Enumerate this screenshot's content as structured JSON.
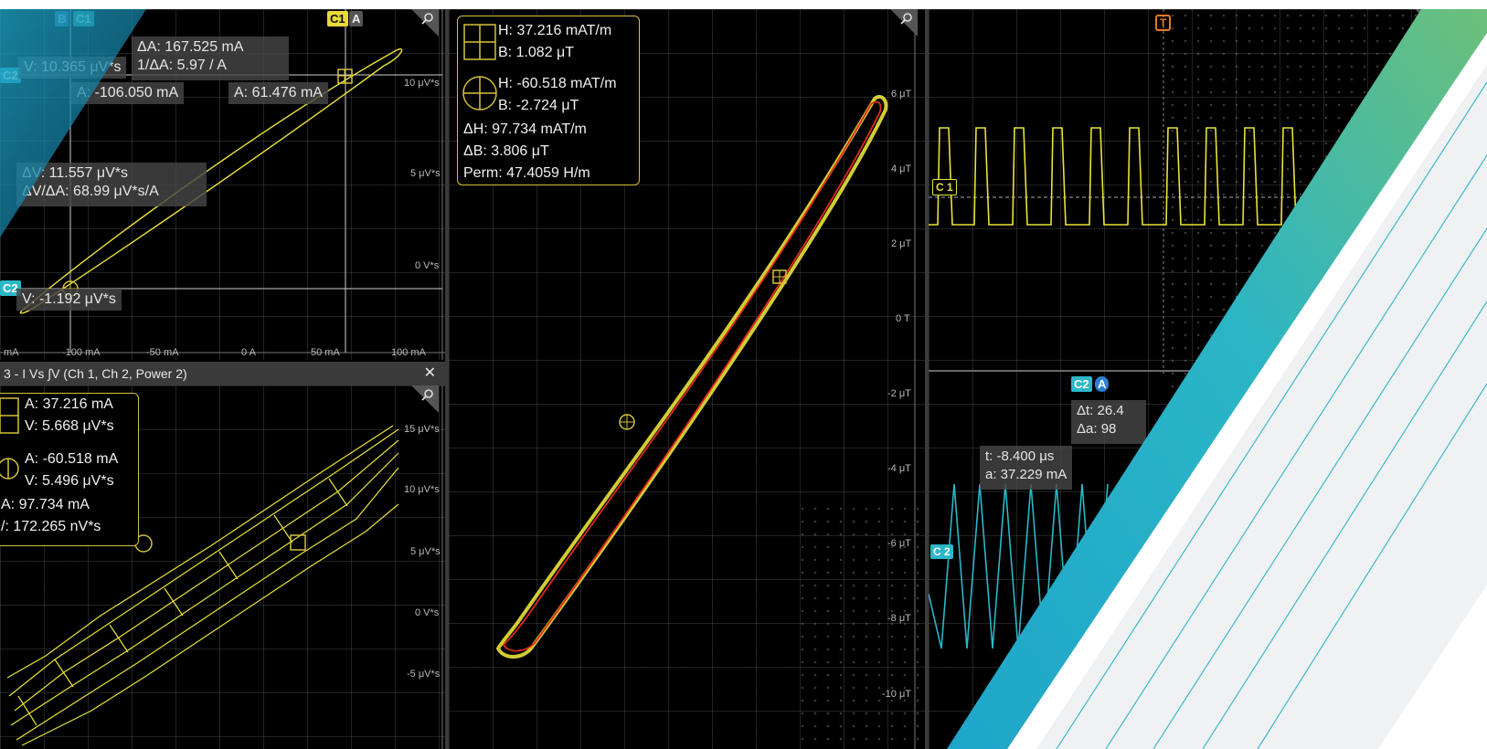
{
  "colors": {
    "background": "#000000",
    "trace_yellow": "#e9e23a",
    "trace_red": "#e0281e",
    "ch2_cyan": "#2bb7c9",
    "trigger_orange": "#e57b1e",
    "cursor_yellow": "#d4c23a",
    "accent_teal": "#1ea6c9",
    "accent_green": "#6cc07a"
  },
  "top_left": {
    "ch_tag_b": "B",
    "ch_tag_c1": "C1",
    "ch_tag_c1_right": "C1",
    "ch_tag_a_right": "A",
    "ch_tag_c2_upper": "C2",
    "ch_tag_c2_lower": "C2",
    "delta_a": "ΔA: 167.525 mA",
    "inv_delta_a": "1/ΔA:  5.97 / A",
    "v_upper": "V: 10.365 μV*s",
    "a_left": "A: -106.050 mA",
    "a_right": "A: 61.476 mA",
    "delta_v": "ΔV: 11.557 μV*s",
    "dv_da": "ΔV/ΔA:  68.99 μV*s/A",
    "v_lower": "V: -1.192 μV*s",
    "y_ticks": [
      "10 μV*s",
      "5 μV*s",
      "0 V*s"
    ],
    "x_ticks": [
      "mA",
      "-100 mA",
      "-50 mA",
      "0 A",
      "50 mA",
      "100 mA"
    ]
  },
  "bottom_left": {
    "title": "3 - I Vs ∫V (Ch 1, Ch 2, Power 2)",
    "close_label": "✕",
    "cursor1_a": "A: 37.216 mA",
    "cursor1_v": "V: 5.668 μV*s",
    "cursor2_a": "A: -60.518 mA",
    "cursor2_v": "V: 5.496 μV*s",
    "delta_a": "A: 97.734 mA",
    "delta_v": "/: 172.265 nV*s",
    "y_ticks": [
      "15 μV*s",
      "10 μV*s",
      "5 μV*s",
      "0 V*s",
      "-5 μV*s"
    ]
  },
  "center": {
    "h1": "H: 37.216 mAT/m",
    "b1": "B: 1.082 μT",
    "h2": "H: -60.518 mAT/m",
    "b2": "B: -2.724 μT",
    "delta_h": "ΔH: 97.734 mAT/m",
    "delta_b": "ΔB: 3.806 μT",
    "perm": "Perm: 47.4059 H/m",
    "y_ticks": [
      "6 μT",
      "4 μT",
      "2 μT",
      "0 T",
      "-2 μT",
      "-4 μT",
      "-6 μT",
      "-8 μT",
      "-10 μT"
    ]
  },
  "right": {
    "trigger_tag": "T",
    "c1_tag": "C 1",
    "c2_tag": "C 2",
    "c2_badge": "C2",
    "a_badge": "A",
    "dt": "Δt: 26.4",
    "da": "Δa: 98",
    "t_val": "t: -8.400 μs",
    "a_val": "a: 37.229 mA"
  }
}
